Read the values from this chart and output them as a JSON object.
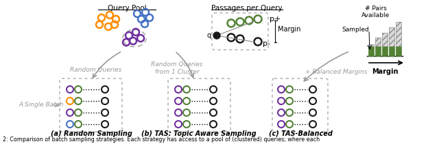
{
  "bg_color": "#ffffff",
  "orange": "#FF8C00",
  "blue": "#4472C4",
  "purple": "#7030A0",
  "green": "#538135",
  "black": "#1a1a1a",
  "gray": "#999999",
  "dark_gray": "#666666",
  "caption": "2: Comparison of batch sampling strategies. Each strategy has access to a pool of (clustered) queries; where each",
  "label_a": "(a) Random Sampling",
  "label_b": "(b) TAS: Topic Aware Sampling",
  "label_c": "(c) TAS-Balanced",
  "query_pool_label": "Query Pool",
  "passages_label": "Passages per Query",
  "random_queries_label": "Random Queries",
  "tas_queries_label": "Random Queries\nfrom 1 Cluster",
  "balanced_label": "+ Balanced Margins",
  "single_batch_label": "A Single Batch",
  "pairs_available": "# Pairs\nAvailable",
  "sampled": "Sampled",
  "margin_arrow": "Margin",
  "pplus": "p+",
  "pminus": "p-",
  "q_label": "q",
  "margin_label": "Margin"
}
